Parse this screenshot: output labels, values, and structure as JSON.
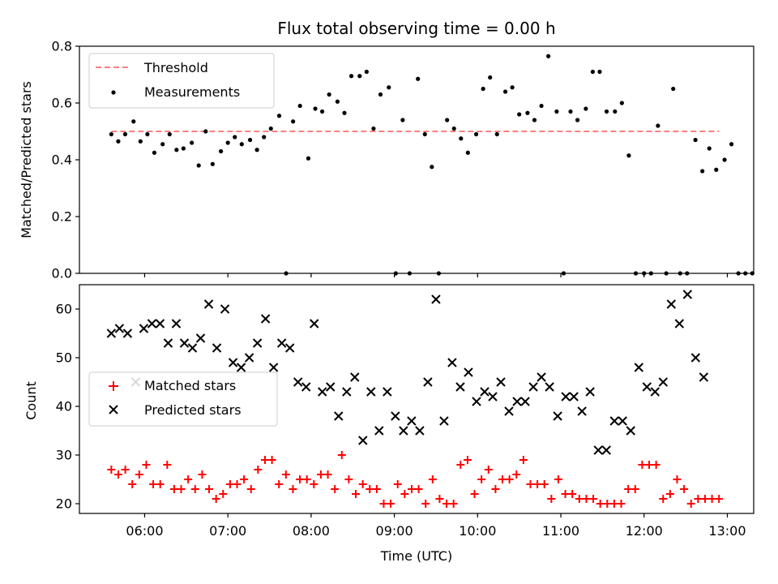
{
  "chart_data": [
    {
      "type": "scatter",
      "title": "Flux total observing time = 0.00 h",
      "ylabel": "Matched/Predicted stars",
      "ylim": [
        0,
        0.8
      ],
      "yticks": [
        "0.0",
        "0.2",
        "0.4",
        "0.6",
        "0.8"
      ],
      "legend": {
        "placement": "top-left"
      },
      "threshold": {
        "name": "Threshold",
        "value": 0.5,
        "x_start": "05:36",
        "x_end": "12:54",
        "color": "#ff7f7f",
        "style": "dashed"
      },
      "series": [
        {
          "name": "Measurements",
          "color": "#000000",
          "marker": "dot",
          "points": [
            [
              "05:36",
              0.49
            ],
            [
              "05:41",
              0.465
            ],
            [
              "05:46",
              0.49
            ],
            [
              "05:52",
              0.535
            ],
            [
              "05:57",
              0.465
            ],
            [
              "06:02",
              0.49
            ],
            [
              "06:07",
              0.425
            ],
            [
              "06:13",
              0.455
            ],
            [
              "06:18",
              0.49
            ],
            [
              "06:23",
              0.435
            ],
            [
              "06:28",
              0.44
            ],
            [
              "06:34",
              0.46
            ],
            [
              "06:39",
              0.38
            ],
            [
              "06:44",
              0.5
            ],
            [
              "06:49",
              0.385
            ],
            [
              "06:55",
              0.43
            ],
            [
              "07:00",
              0.46
            ],
            [
              "07:05",
              0.48
            ],
            [
              "07:10",
              0.455
            ],
            [
              "07:16",
              0.47
            ],
            [
              "07:21",
              0.435
            ],
            [
              "07:26",
              0.48
            ],
            [
              "07:31",
              0.51
            ],
            [
              "07:37",
              0.555
            ],
            [
              "07:42",
              0.0
            ],
            [
              "07:47",
              0.535
            ],
            [
              "07:52",
              0.59
            ],
            [
              "07:58",
              0.405
            ],
            [
              "08:03",
              0.58
            ],
            [
              "08:08",
              0.57
            ],
            [
              "08:13",
              0.63
            ],
            [
              "08:19",
              0.605
            ],
            [
              "08:24",
              0.565
            ],
            [
              "08:29",
              0.695
            ],
            [
              "08:35",
              0.695
            ],
            [
              "08:40",
              0.71
            ],
            [
              "08:45",
              0.51
            ],
            [
              "08:50",
              0.63
            ],
            [
              "08:56",
              0.655
            ],
            [
              "09:01",
              0.0
            ],
            [
              "09:06",
              0.54
            ],
            [
              "09:11",
              0.0
            ],
            [
              "09:17",
              0.685
            ],
            [
              "09:22",
              0.49
            ],
            [
              "09:27",
              0.375
            ],
            [
              "09:32",
              0.0
            ],
            [
              "09:38",
              0.54
            ],
            [
              "09:43",
              0.51
            ],
            [
              "09:48",
              0.475
            ],
            [
              "09:53",
              0.425
            ],
            [
              "09:59",
              0.49
            ],
            [
              "10:04",
              0.65
            ],
            [
              "10:09",
              0.69
            ],
            [
              "10:14",
              0.49
            ],
            [
              "10:20",
              0.64
            ],
            [
              "10:25",
              0.655
            ],
            [
              "10:30",
              0.56
            ],
            [
              "10:36",
              0.565
            ],
            [
              "10:41",
              0.54
            ],
            [
              "10:46",
              0.59
            ],
            [
              "10:51",
              0.765
            ],
            [
              "10:57",
              0.57
            ],
            [
              "11:02",
              0.0
            ],
            [
              "11:07",
              0.57
            ],
            [
              "11:12",
              0.54
            ],
            [
              "11:18",
              0.58
            ],
            [
              "11:23",
              0.71
            ],
            [
              "11:28",
              0.71
            ],
            [
              "11:33",
              0.57
            ],
            [
              "11:39",
              0.57
            ],
            [
              "11:44",
              0.6
            ],
            [
              "11:49",
              0.415
            ],
            [
              "11:54",
              0.0
            ],
            [
              "12:00",
              0.0
            ],
            [
              "12:05",
              0.0
            ],
            [
              "12:10",
              0.52
            ],
            [
              "12:16",
              0.0
            ],
            [
              "12:21",
              0.65
            ],
            [
              "12:26",
              0.0
            ],
            [
              "12:31",
              0.0
            ],
            [
              "12:37",
              0.47
            ],
            [
              "12:42",
              0.36
            ],
            [
              "12:47",
              0.44
            ],
            [
              "12:52",
              0.365
            ],
            [
              "12:58",
              0.4
            ],
            [
              "13:03",
              0.455
            ],
            [
              "13:08",
              0.0
            ],
            [
              "13:13",
              0.0
            ],
            [
              "13:18",
              0.0
            ]
          ]
        }
      ],
      "grid": false
    },
    {
      "type": "scatter",
      "xlabel": "Time (UTC)",
      "ylabel": "Count",
      "ylim": [
        18,
        65
      ],
      "yticks": [
        "20",
        "30",
        "40",
        "50",
        "60"
      ],
      "xticks": [
        "06:00",
        "07:00",
        "08:00",
        "09:00",
        "10:00",
        "11:00",
        "12:00",
        "13:00"
      ],
      "legend": {
        "placement": "center-left"
      },
      "series": [
        {
          "name": "Matched stars",
          "color": "#ff0000",
          "marker": "plus",
          "values": [
            27,
            26,
            27,
            24,
            26,
            28,
            24,
            24,
            28,
            23,
            23,
            25,
            23,
            26,
            23,
            21,
            22,
            24,
            24,
            25,
            23,
            27,
            29,
            29,
            24,
            26,
            23,
            25,
            25,
            24,
            26,
            26,
            23,
            30,
            25,
            22,
            24,
            23,
            23,
            20,
            20,
            24,
            22,
            23,
            23,
            20,
            25,
            21,
            20,
            20,
            28,
            29,
            22,
            25,
            27,
            23,
            25,
            25,
            26,
            29,
            24,
            24,
            24,
            21,
            25,
            22,
            22,
            21,
            21,
            21,
            20,
            20,
            20,
            20,
            23,
            23,
            28,
            28,
            28,
            21,
            22,
            25,
            23,
            20,
            21,
            21,
            21,
            21
          ]
        },
        {
          "name": "Predicted stars",
          "color": "#000000",
          "marker": "x",
          "values": [
            55,
            56,
            55,
            45,
            56,
            57,
            57,
            53,
            57,
            53,
            52,
            54,
            61,
            52,
            60,
            49,
            48,
            50,
            53,
            58,
            48,
            53,
            52,
            45,
            44,
            57,
            43,
            44,
            38,
            43,
            46,
            33,
            43,
            35,
            43,
            38,
            35,
            37,
            35,
            45,
            62,
            37,
            49,
            44,
            47,
            41,
            43,
            42,
            45,
            39,
            41,
            41,
            44,
            46,
            44,
            38,
            42,
            42,
            39,
            43,
            31,
            31,
            37,
            37,
            35,
            48,
            44,
            43,
            45,
            61,
            57,
            63,
            50,
            46
          ]
        }
      ],
      "grid": false
    }
  ]
}
